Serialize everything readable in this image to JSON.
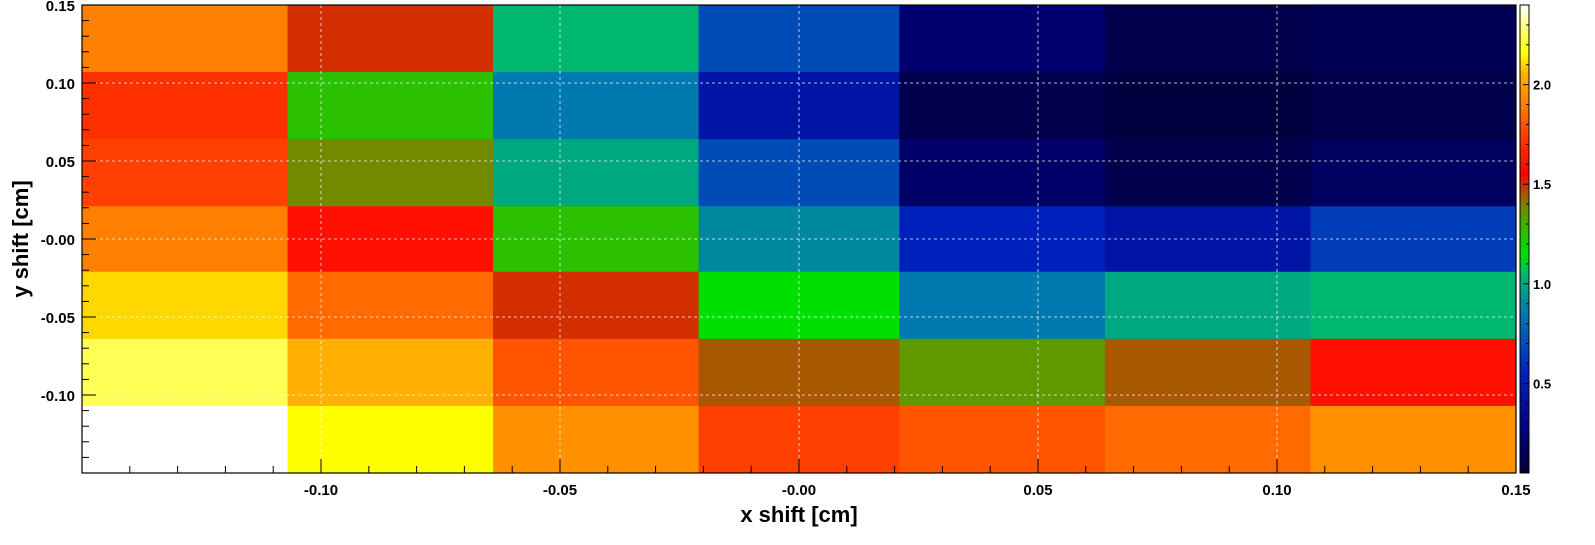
{
  "chart_data": {
    "type": "heatmap",
    "title": "",
    "xlabel": "x shift [cm]",
    "ylabel": "y shift [cm]",
    "xlim": [
      -0.15,
      0.15
    ],
    "ylim": [
      -0.15,
      0.15
    ],
    "x_ticks": [
      {
        "value": -0.1,
        "label": "-0.10"
      },
      {
        "value": -0.05,
        "label": "-0.05"
      },
      {
        "value": 0.0,
        "label": "-0.00"
      },
      {
        "value": 0.05,
        "label": "0.05"
      },
      {
        "value": 0.1,
        "label": "0.10"
      },
      {
        "value": 0.15,
        "label": "0.15"
      }
    ],
    "y_ticks": [
      {
        "value": -0.1,
        "label": "-0.10"
      },
      {
        "value": -0.05,
        "label": "-0.05"
      },
      {
        "value": 0.0,
        "label": "-0.00"
      },
      {
        "value": 0.05,
        "label": "0.05"
      },
      {
        "value": 0.1,
        "label": "0.10"
      },
      {
        "value": 0.15,
        "label": "0.15"
      }
    ],
    "grid": true,
    "colorbar": {
      "min": 0.05,
      "max": 2.4,
      "ticks": [
        {
          "value": 0.5,
          "label": "0.5"
        },
        {
          "value": 1.0,
          "label": "1.0"
        },
        {
          "value": 1.5,
          "label": "1.5"
        },
        {
          "value": 2.0,
          "label": "2.0"
        }
      ],
      "placement": "right",
      "stops": [
        {
          "v": 0.05,
          "color": "#000033"
        },
        {
          "v": 0.25,
          "color": "#00007a"
        },
        {
          "v": 0.55,
          "color": "#0020bb"
        },
        {
          "v": 0.85,
          "color": "#0078b0"
        },
        {
          "v": 1.05,
          "color": "#00b870"
        },
        {
          "v": 1.15,
          "color": "#00e000"
        },
        {
          "v": 1.3,
          "color": "#40b000"
        },
        {
          "v": 1.4,
          "color": "#808000"
        },
        {
          "v": 1.48,
          "color": "#c04000"
        },
        {
          "v": 1.55,
          "color": "#ff0000"
        },
        {
          "v": 1.75,
          "color": "#ff4000"
        },
        {
          "v": 1.9,
          "color": "#ff8000"
        },
        {
          "v": 2.05,
          "color": "#ffb000"
        },
        {
          "v": 2.15,
          "color": "#ffff00"
        },
        {
          "v": 2.25,
          "color": "#ffff55"
        },
        {
          "v": 2.4,
          "color": "#ffffff"
        }
      ]
    },
    "x_edges": [
      -0.15,
      -0.107,
      -0.064,
      -0.021,
      0.021,
      0.064,
      0.107,
      0.15
    ],
    "y_edges": [
      -0.15,
      -0.107,
      -0.064,
      -0.021,
      0.021,
      0.064,
      0.107,
      0.15
    ],
    "z_rows_top_to_bottom": [
      [
        1.9,
        1.5,
        1.05,
        0.7,
        0.22,
        0.12,
        0.15
      ],
      [
        1.7,
        1.25,
        0.85,
        0.45,
        0.12,
        0.08,
        0.12
      ],
      [
        1.75,
        1.38,
        1.0,
        0.7,
        0.2,
        0.12,
        0.18
      ],
      [
        1.9,
        1.6,
        1.25,
        0.9,
        0.55,
        0.45,
        0.65
      ],
      [
        2.1,
        1.85,
        1.5,
        1.15,
        0.85,
        1.0,
        1.05
      ],
      [
        2.25,
        2.05,
        1.8,
        1.45,
        1.35,
        1.45,
        1.6
      ],
      [
        2.4,
        2.15,
        1.95,
        1.75,
        1.8,
        1.85,
        1.95
      ]
    ]
  }
}
